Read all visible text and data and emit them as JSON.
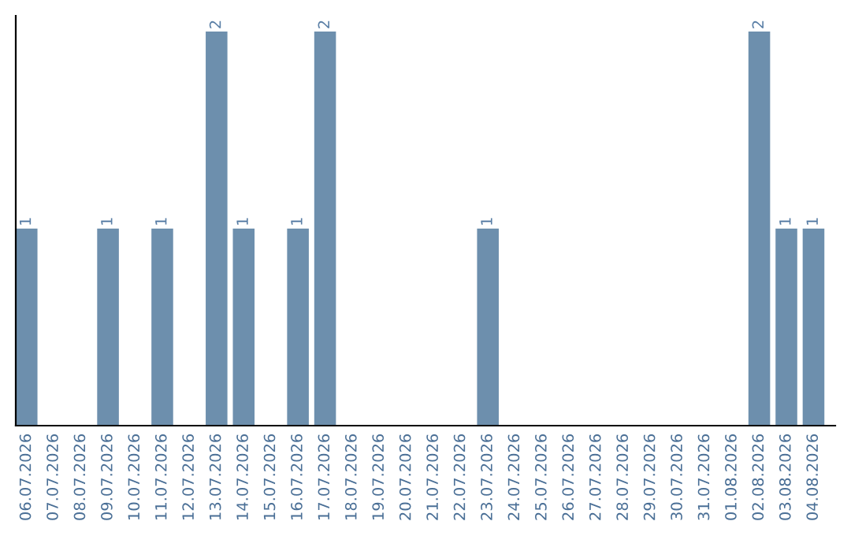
{
  "chart_data": {
    "type": "bar",
    "categories": [
      "06.07.2026",
      "07.07.2026",
      "08.07.2026",
      "09.07.2026",
      "10.07.2026",
      "11.07.2026",
      "12.07.2026",
      "13.07.2026",
      "14.07.2026",
      "15.07.2026",
      "16.07.2026",
      "17.07.2026",
      "18.07.2026",
      "19.07.2026",
      "20.07.2026",
      "21.07.2026",
      "22.07.2026",
      "23.07.2026",
      "24.07.2026",
      "25.07.2026",
      "26.07.2026",
      "27.07.2026",
      "28.07.2026",
      "29.07.2026",
      "30.07.2026",
      "31.07.2026",
      "01.08.2026",
      "02.08.2026",
      "03.08.2026",
      "04.08.2026"
    ],
    "values": [
      1,
      0,
      0,
      1,
      0,
      1,
      0,
      2,
      1,
      0,
      1,
      2,
      0,
      0,
      0,
      0,
      0,
      1,
      0,
      0,
      0,
      0,
      0,
      0,
      0,
      0,
      0,
      2,
      1,
      1
    ],
    "color": "#6d8fad",
    "value_labels": [
      "1",
      null,
      null,
      "1",
      null,
      "1",
      null,
      "2",
      "1",
      null,
      "1",
      "2",
      null,
      null,
      null,
      null,
      null,
      "1",
      null,
      null,
      null,
      null,
      null,
      null,
      null,
      null,
      null,
      "2",
      "1",
      "1"
    ],
    "tick_labels": "x",
    "grid": false,
    "legend": false
  }
}
